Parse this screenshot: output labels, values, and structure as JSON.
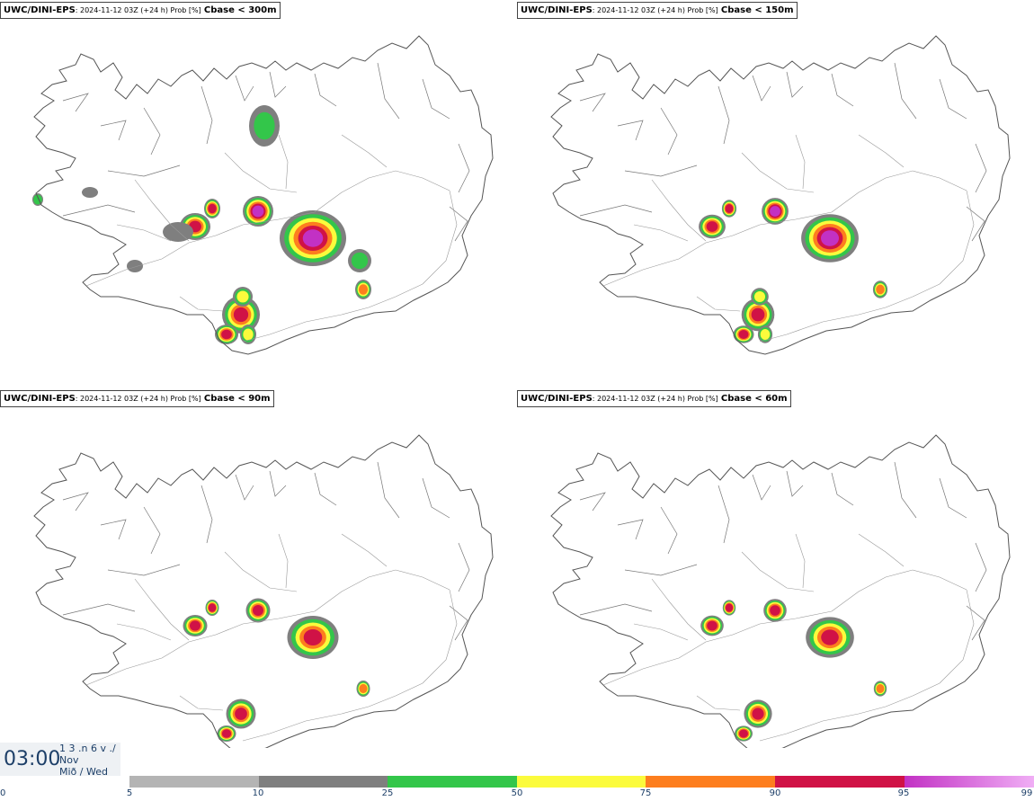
{
  "panels": [
    {
      "model": "UWC/DINI-EPS",
      "meta": ": 2024-11-12 03Z (+24 h) Prob [%]",
      "condition": "Cbase < 300m"
    },
    {
      "model": "UWC/DINI-EPS",
      "meta": ": 2024-11-12 03Z (+24 h) Prob [%]",
      "condition": "Cbase < 150m"
    },
    {
      "model": "UWC/DINI-EPS",
      "meta": ": 2024-11-12 03Z (+24 h) Prob [%]",
      "condition": "Cbase < 90m"
    },
    {
      "model": "UWC/DINI-EPS",
      "meta": ": 2024-11-12 03Z (+24 h) Prob [%]",
      "condition": "Cbase < 60m"
    }
  ],
  "time": {
    "hour": "03:00",
    "line1": "1 3 .n 6 v ./",
    "line2": "Nov",
    "line3": "Mið / Wed"
  },
  "colorbar": {
    "segments": [
      {
        "from": "5",
        "to": "10",
        "color": "#b4b4b4"
      },
      {
        "from": "10",
        "to": "25",
        "color": "#7f7f7f"
      },
      {
        "from": "25",
        "to": "50",
        "color": "#33c64a"
      },
      {
        "from": "50",
        "to": "75",
        "color": "#fbfb3c"
      },
      {
        "from": "75",
        "to": "90",
        "color": "#fd7e1e"
      },
      {
        "from": "90",
        "to": "95",
        "color": "#d01246"
      },
      {
        "from": "95",
        "to": "99",
        "color": "#c231c4"
      }
    ],
    "last_color_end": "#f0aef5",
    "labels": [
      "0",
      "5",
      "10",
      "25",
      "50",
      "75",
      "90",
      "95",
      "99"
    ]
  },
  "legend_colors": {
    "p5": "#b4b4b4",
    "p10": "#7f7f7f",
    "p25": "#33c64a",
    "p50": "#fbfb3c",
    "p75": "#fd7e1e",
    "p90": "#d01246",
    "p95": "#c231c4",
    "p99": "#f0aef5"
  }
}
